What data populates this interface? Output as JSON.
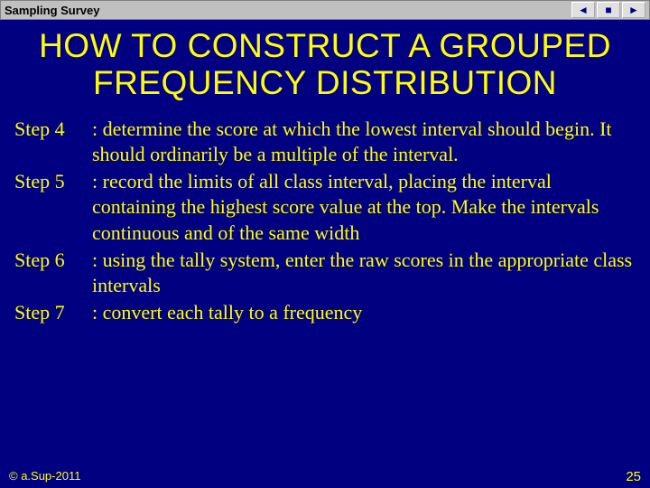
{
  "header": {
    "title": "Sampling Survey",
    "nav": {
      "prev": "◄",
      "menu": "■",
      "next": "►"
    }
  },
  "slide": {
    "title": "HOW TO CONSTRUCT A GROUPED FREQUENCY DISTRIBUTION"
  },
  "steps": [
    {
      "label": "Step 4",
      "desc": ": determine the score at which the lowest interval should begin. It should ordinarily be a multiple of the interval."
    },
    {
      "label": "Step 5",
      "desc": ": record the limits of all class interval, placing the interval containing the highest score value at the top. Make the intervals continuous and of the same width"
    },
    {
      "label": "Step 6",
      "desc": ": using the tally system, enter the raw scores in the appropriate class intervals"
    },
    {
      "label": "Step 7",
      "desc": ": convert each tally to a frequency"
    }
  ],
  "footer": {
    "copyright": "© a.Sup-2011",
    "page": "25"
  },
  "colors": {
    "background": "#000080",
    "text": "#ffff00",
    "headerBg": "#c0c0c0"
  }
}
